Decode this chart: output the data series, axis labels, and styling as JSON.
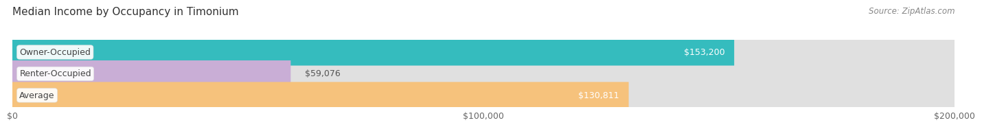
{
  "title": "Median Income by Occupancy in Timonium",
  "source": "Source: ZipAtlas.com",
  "categories": [
    "Owner-Occupied",
    "Renter-Occupied",
    "Average"
  ],
  "values": [
    153200,
    59076,
    130811
  ],
  "labels": [
    "$153,200",
    "$59,076",
    "$130,811"
  ],
  "label_inside": [
    true,
    false,
    true
  ],
  "label_colors": [
    "#ffffff",
    "#555555",
    "#ffffff"
  ],
  "bar_colors": [
    "#35bcbe",
    "#c9aed6",
    "#f6c27c"
  ],
  "bar_bg_color": "#e8e8e8",
  "xmax": 200000,
  "xtick_labels": [
    "$0",
    "$100,000",
    "$200,000"
  ],
  "title_fontsize": 11,
  "source_fontsize": 8.5,
  "label_fontsize": 9,
  "category_fontsize": 9,
  "bar_height": 0.62,
  "bar_gap": 0.18,
  "background_color": "#ffffff",
  "strip_bg_colors": [
    "#f2f2f2",
    "#ffffff",
    "#f2f2f2"
  ]
}
